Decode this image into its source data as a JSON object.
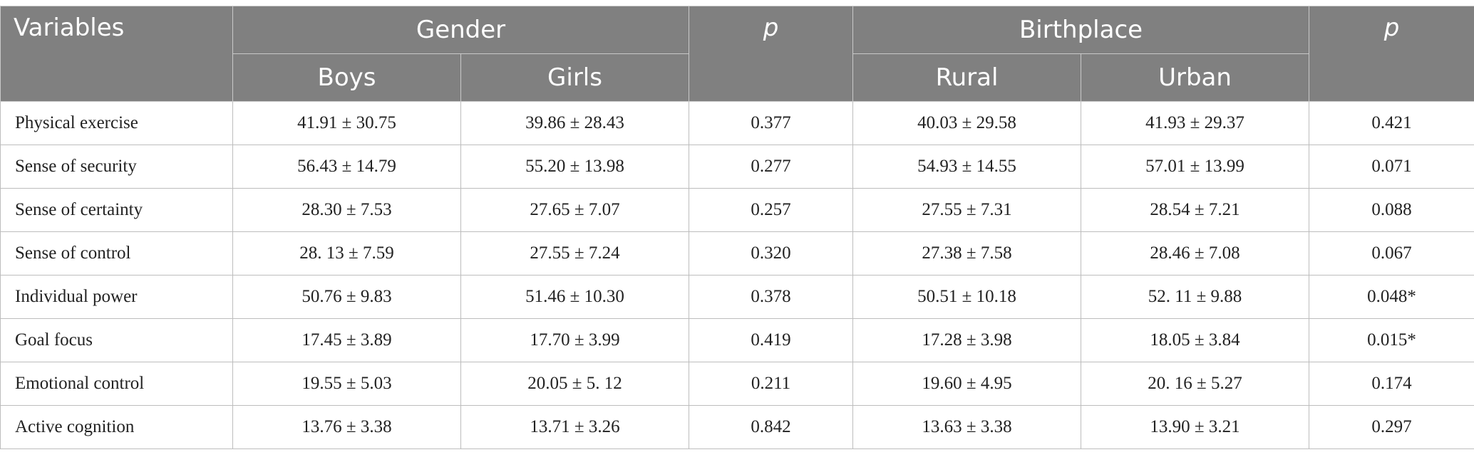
{
  "header": {
    "variables_label": "Variables",
    "gender_label": "Gender",
    "p_label": "p",
    "birthplace_label": "Birthplace",
    "boys_label": "Boys",
    "girls_label": "Girls",
    "rural_label": "Rural",
    "urban_label": "Urban"
  },
  "rows": [
    {
      "variable": "Physical exercise",
      "boys": "41.91 ± 30.75",
      "girls": "39.86 ± 28.43",
      "p_gender": "0.377",
      "rural": "40.03 ± 29.58",
      "urban": "41.93 ± 29.37",
      "p_birthplace": "0.421"
    },
    {
      "variable": "Sense of security",
      "boys": "56.43 ± 14.79",
      "girls": "55.20 ± 13.98",
      "p_gender": "0.277",
      "rural": "54.93 ± 14.55",
      "urban": "57.01 ± 13.99",
      "p_birthplace": "0.071"
    },
    {
      "variable": "Sense of certainty",
      "boys": "28.30 ± 7.53",
      "girls": "27.65 ± 7.07",
      "p_gender": "0.257",
      "rural": "27.55 ± 7.31",
      "urban": "28.54 ± 7.21",
      "p_birthplace": "0.088"
    },
    {
      "variable": "Sense of control",
      "boys": "28. 13 ± 7.59",
      "girls": "27.55 ± 7.24",
      "p_gender": "0.320",
      "rural": "27.38 ± 7.58",
      "urban": "28.46 ± 7.08",
      "p_birthplace": "0.067"
    },
    {
      "variable": "Individual power",
      "boys": "50.76 ± 9.83",
      "girls": "51.46 ± 10.30",
      "p_gender": "0.378",
      "rural": "50.51 ± 10.18",
      "urban": "52. 11 ± 9.88",
      "p_birthplace": "0.048*"
    },
    {
      "variable": "Goal focus",
      "boys": "17.45 ± 3.89",
      "girls": "17.70 ± 3.99",
      "p_gender": "0.419",
      "rural": "17.28 ± 3.98",
      "urban": "18.05 ± 3.84",
      "p_birthplace": "0.015*"
    },
    {
      "variable": "Emotional control",
      "boys": "19.55 ± 5.03",
      "girls": "20.05 ± 5. 12",
      "p_gender": "0.211",
      "rural": "19.60 ± 4.95",
      "urban": "20. 16 ± 5.27",
      "p_birthplace": "0.174"
    },
    {
      "variable": "Active cognition",
      "boys": "13.76 ± 3.38",
      "girls": "13.71 ± 3.26",
      "p_gender": "0.842",
      "rural": "13.63 ± 3.38",
      "urban": "13.90 ± 3.21",
      "p_birthplace": "0.297"
    }
  ]
}
